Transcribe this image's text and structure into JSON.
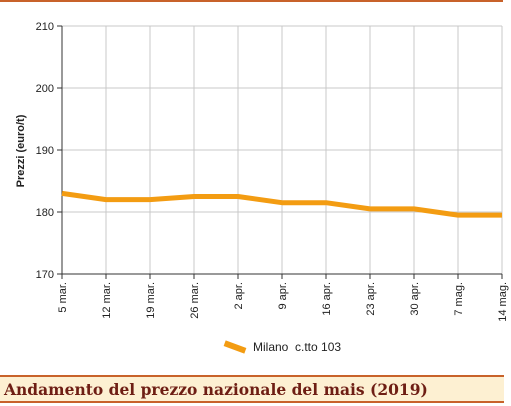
{
  "colors": {
    "series": "#f39c12",
    "grid": "#c8c8c8",
    "accent_rule": "#c8622a",
    "caption_bg": "#fdf0d2",
    "caption_text": "#6e1e14"
  },
  "caption": "Andamento del prezzo nazionale del mais (2019)",
  "chart_data": {
    "type": "line",
    "title": "Andamento del prezzo nazionale del mais (2019)",
    "xlabel": "",
    "ylabel": "Prezzi (euro/t)",
    "categories": [
      "5 mar.",
      "12 mar.",
      "19 mar.",
      "26 mar.",
      "2 apr.",
      "9 apr.",
      "16 apr.",
      "23 apr.",
      "30 apr.",
      "7 mag.",
      "14 mag."
    ],
    "series": [
      {
        "name": "Milano  c.tto 103",
        "values": [
          183,
          182,
          182,
          182.5,
          182.5,
          181.5,
          181.5,
          180.5,
          180.5,
          179.5,
          179.5
        ]
      }
    ],
    "ylim": [
      170,
      210
    ],
    "yticks": [
      170,
      180,
      190,
      200,
      210
    ],
    "grid": true,
    "legend": "bottom-center"
  }
}
